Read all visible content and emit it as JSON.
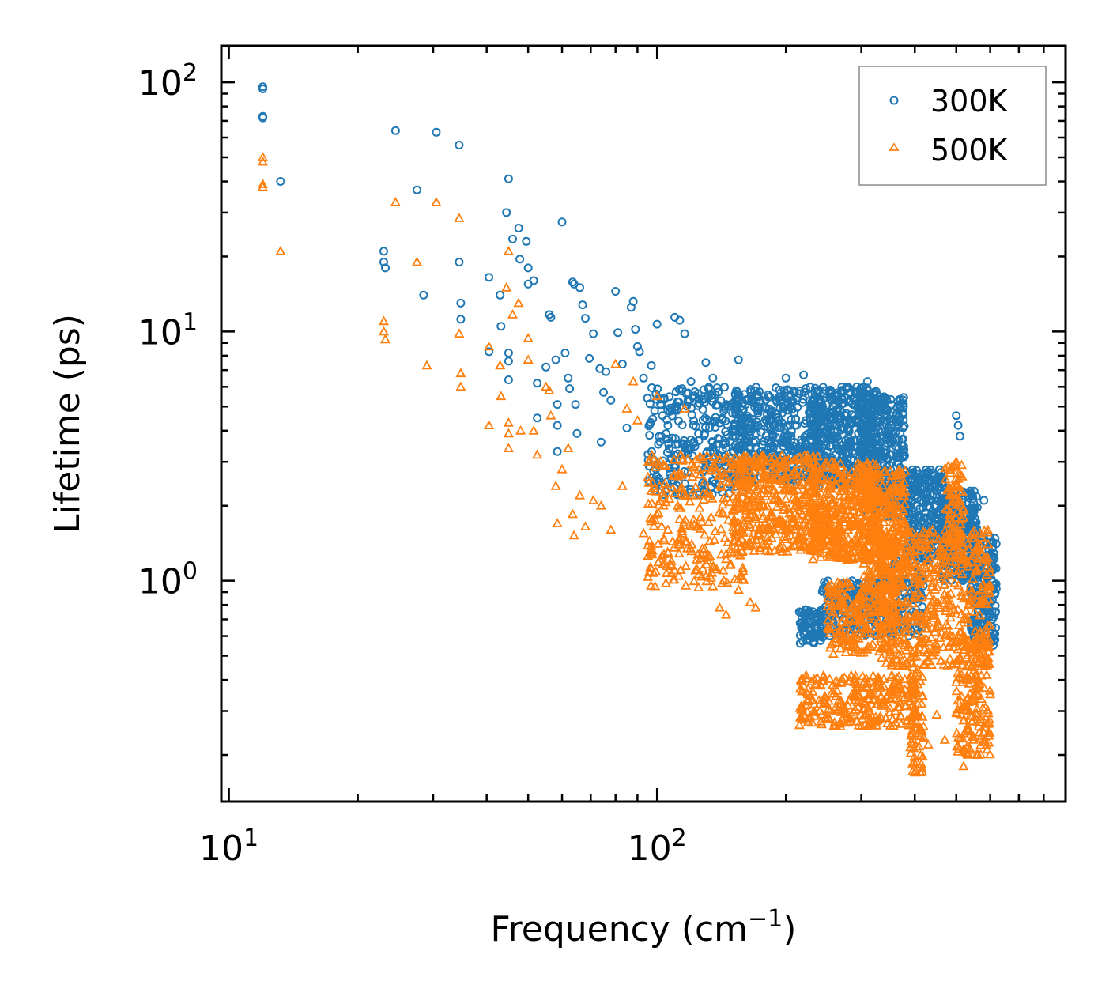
{
  "chart_data": {
    "type": "scatter",
    "title": "",
    "xlabel": "Frequency (cm",
    "xlabel_sup": "−1",
    "xlabel_suffix": ")",
    "ylabel": "Lifetime (ps)",
    "xscale": "log",
    "yscale": "log",
    "xlim": [
      9.6,
      900
    ],
    "ylim": [
      0.13,
      140
    ],
    "x_ticks": [
      {
        "value": 10,
        "base": "10",
        "exp": "1"
      },
      {
        "value": 100,
        "base": "10",
        "exp": "2"
      }
    ],
    "y_ticks": [
      {
        "value": 1,
        "base": "10",
        "exp": "0"
      },
      {
        "value": 10,
        "base": "10",
        "exp": "1"
      },
      {
        "value": 100,
        "base": "10",
        "exp": "2"
      }
    ],
    "legend_position": "top-right",
    "series": [
      {
        "name": "300K",
        "marker": "circle",
        "color": "#1f77b4",
        "points": [
          [
            12.0,
            96
          ],
          [
            12.0,
            94
          ],
          [
            12.0,
            73
          ],
          [
            12.0,
            72
          ],
          [
            13.2,
            40
          ],
          [
            24.5,
            64
          ],
          [
            23.0,
            21
          ],
          [
            23.0,
            19
          ],
          [
            23.2,
            18
          ],
          [
            27.5,
            37
          ],
          [
            28.5,
            14
          ],
          [
            30.5,
            63
          ],
          [
            34.5,
            56
          ],
          [
            34.5,
            19
          ],
          [
            34.8,
            13
          ],
          [
            34.8,
            11.2
          ],
          [
            40.5,
            16.5
          ],
          [
            40.5,
            8.3
          ],
          [
            43.0,
            14
          ],
          [
            43.2,
            10.5
          ],
          [
            44.5,
            30
          ],
          [
            45.0,
            41
          ],
          [
            45.0,
            8.2
          ],
          [
            45.0,
            7.6
          ],
          [
            45.0,
            6.4
          ],
          [
            46.0,
            23.5
          ],
          [
            47.5,
            26
          ],
          [
            47.8,
            19.5
          ],
          [
            49.5,
            23
          ],
          [
            50.0,
            18
          ],
          [
            50.0,
            15.5
          ],
          [
            51.5,
            16
          ],
          [
            52.5,
            6.2
          ],
          [
            52.5,
            4.5
          ],
          [
            55.0,
            7.2
          ],
          [
            56.0,
            11.7
          ],
          [
            56.5,
            11.4
          ],
          [
            58.0,
            7.7
          ],
          [
            58.5,
            5.1
          ],
          [
            58.5,
            4.2
          ],
          [
            58.5,
            3.3
          ],
          [
            60.0,
            27.5
          ],
          [
            61.0,
            8.2
          ],
          [
            62.0,
            6.5
          ],
          [
            62.5,
            5.9
          ],
          [
            63.5,
            15.8
          ],
          [
            64.0,
            15.5
          ],
          [
            64.5,
            5.1
          ],
          [
            65.0,
            3.9
          ],
          [
            66.0,
            15
          ],
          [
            67.0,
            12.8
          ],
          [
            68.0,
            11.3
          ],
          [
            69.5,
            7.8
          ],
          [
            71.0,
            9.8
          ],
          [
            73.5,
            7.1
          ],
          [
            74.0,
            3.6
          ],
          [
            75.0,
            5.7
          ],
          [
            76.0,
            6.9
          ],
          [
            78.0,
            5.3
          ],
          [
            80.0,
            14.5
          ],
          [
            81.0,
            9.9
          ],
          [
            83.0,
            7.4
          ],
          [
            85.0,
            4.1
          ],
          [
            87.0,
            12.5
          ],
          [
            88.0,
            13.2
          ],
          [
            89.0,
            10.2
          ],
          [
            90.0,
            8.7
          ],
          [
            91.0,
            8.3
          ],
          [
            93.0,
            6.5
          ],
          [
            95.0,
            5.4
          ],
          [
            97.0,
            7.3
          ],
          [
            100.0,
            10.7
          ],
          [
            103.0,
            4.6
          ],
          [
            106.0,
            4.2
          ],
          [
            108.0,
            2.6
          ],
          [
            110.0,
            11.4
          ],
          [
            113.0,
            11.1
          ],
          [
            116.0,
            9.8
          ],
          [
            120.0,
            6.3
          ],
          [
            125.0,
            3.9
          ],
          [
            130.0,
            7.5
          ],
          [
            135.0,
            6.5
          ],
          [
            140.0,
            3.7
          ],
          [
            145.0,
            5.1
          ],
          [
            150.0,
            4.7
          ],
          [
            155.0,
            7.7
          ],
          [
            160.0,
            5.6
          ],
          [
            170.0,
            3.4
          ],
          [
            180.0,
            4.9
          ],
          [
            190.0,
            5.3
          ],
          [
            200.0,
            6.5
          ],
          [
            210.0,
            4.2
          ],
          [
            220.0,
            6.7
          ],
          [
            215.0,
            0.75
          ],
          [
            225.0,
            0.68
          ],
          [
            230.0,
            0.59
          ],
          [
            240.0,
            4.3
          ],
          [
            250.0,
            0.72
          ],
          [
            260.0,
            5.6
          ],
          [
            270.0,
            0.81
          ],
          [
            280.0,
            4.1
          ],
          [
            290.0,
            0.64
          ],
          [
            300.0,
            5.9
          ],
          [
            310.0,
            6.3
          ],
          [
            320.0,
            4.8
          ],
          [
            330.0,
            0.9
          ],
          [
            340.0,
            5.4
          ],
          [
            350.0,
            3.7
          ],
          [
            370.0,
            3.1
          ],
          [
            390.0,
            2.3
          ],
          [
            400.0,
            0.85
          ],
          [
            420.0,
            2.6
          ],
          [
            440.0,
            2.2
          ],
          [
            460.0,
            2.1
          ],
          [
            480.0,
            2.0
          ],
          [
            500.0,
            4.6
          ],
          [
            505.0,
            4.2
          ],
          [
            510.0,
            3.8
          ],
          [
            530.0,
            2.2
          ],
          [
            560.0,
            1.4
          ],
          [
            580.0,
            2.1
          ],
          [
            600.0,
            0.82
          ],
          [
            610.0,
            0.55
          ]
        ],
        "clusters": [
          {
            "x": [
              95,
              160
            ],
            "y": [
              2.2,
              6.0
            ],
            "count": 260
          },
          {
            "x": [
              150,
              240
            ],
            "y": [
              2.5,
              6.0
            ],
            "count": 420
          },
          {
            "x": [
              230,
              330
            ],
            "y": [
              2.4,
              6.0
            ],
            "count": 460
          },
          {
            "x": [
              300,
              380
            ],
            "y": [
              1.8,
              5.5
            ],
            "count": 300
          },
          {
            "x": [
              380,
              470
            ],
            "y": [
              1.2,
              2.8
            ],
            "count": 260
          },
          {
            "x": [
              460,
              560
            ],
            "y": [
              1.0,
              2.3
            ],
            "count": 260
          },
          {
            "x": [
              540,
              620
            ],
            "y": [
              0.55,
              1.5
            ],
            "count": 200
          },
          {
            "x": [
              215,
              245
            ],
            "y": [
              0.56,
              0.77
            ],
            "count": 70
          },
          {
            "x": [
              240,
              330
            ],
            "y": [
              0.6,
              1.0
            ],
            "count": 180
          },
          {
            "x": [
              330,
              420
            ],
            "y": [
              0.6,
              1.2
            ],
            "count": 140
          }
        ]
      },
      {
        "name": "500K",
        "marker": "triangle",
        "color": "#ff7f0e",
        "points": [
          [
            12.0,
            50
          ],
          [
            12.0,
            48
          ],
          [
            12.0,
            39
          ],
          [
            12.0,
            38
          ],
          [
            13.2,
            21
          ],
          [
            23.0,
            11
          ],
          [
            23.0,
            10
          ],
          [
            23.2,
            9.3
          ],
          [
            24.5,
            33
          ],
          [
            27.5,
            19
          ],
          [
            29.0,
            7.3
          ],
          [
            30.5,
            33
          ],
          [
            34.5,
            28.5
          ],
          [
            34.5,
            9.8
          ],
          [
            34.8,
            6.8
          ],
          [
            34.8,
            6.0
          ],
          [
            40.5,
            8.7
          ],
          [
            40.5,
            4.2
          ],
          [
            43.0,
            7.3
          ],
          [
            43.2,
            5.5
          ],
          [
            44.5,
            15
          ],
          [
            45.0,
            21
          ],
          [
            45.0,
            4.3
          ],
          [
            45.0,
            3.9
          ],
          [
            45.0,
            3.4
          ],
          [
            46.0,
            11.7
          ],
          [
            47.5,
            13
          ],
          [
            48.0,
            4.0
          ],
          [
            50.0,
            9.4
          ],
          [
            50.0,
            7.7
          ],
          [
            51.5,
            4.0
          ],
          [
            52.5,
            3.2
          ],
          [
            55.0,
            6.0
          ],
          [
            56.0,
            5.8
          ],
          [
            56.5,
            4.6
          ],
          [
            58.0,
            2.4
          ],
          [
            58.5,
            1.7
          ],
          [
            60.0,
            2.8
          ],
          [
            62.0,
            3.4
          ],
          [
            63.5,
            1.85
          ],
          [
            64.0,
            1.52
          ],
          [
            66.0,
            2.2
          ],
          [
            68.0,
            1.65
          ],
          [
            71.0,
            2.1
          ],
          [
            74.0,
            2.0
          ],
          [
            78.0,
            1.6
          ],
          [
            80.0,
            7.4
          ],
          [
            83.0,
            2.4
          ],
          [
            85.0,
            4.9
          ],
          [
            88.0,
            6.3
          ],
          [
            90.0,
            4.4
          ],
          [
            93.0,
            1.55
          ],
          [
            97.0,
            1.3
          ],
          [
            100.0,
            5.5
          ],
          [
            106.0,
            1.6
          ],
          [
            110.0,
            1.1
          ],
          [
            116.0,
            4.9
          ],
          [
            125.0,
            0.94
          ],
          [
            135.0,
            0.95
          ],
          [
            140.0,
            0.78
          ],
          [
            145.0,
            0.73
          ],
          [
            155.0,
            0.92
          ],
          [
            165.0,
            0.82
          ],
          [
            170.0,
            0.78
          ],
          [
            200.0,
            2.3
          ],
          [
            225.0,
            0.35
          ],
          [
            240.0,
            0.3
          ],
          [
            260.0,
            0.27
          ],
          [
            300.0,
            0.26
          ],
          [
            330.0,
            0.28
          ],
          [
            360.0,
            0.3
          ],
          [
            400.0,
            0.17
          ],
          [
            430.0,
            0.22
          ],
          [
            450.0,
            0.29
          ],
          [
            470.0,
            0.23
          ],
          [
            500.0,
            3.0
          ],
          [
            520.0,
            0.18
          ],
          [
            560.0,
            0.2
          ],
          [
            600.0,
            0.35
          ]
        ],
        "clusters": [
          {
            "x": [
              95,
              160
            ],
            "y": [
              0.95,
              3.2
            ],
            "count": 260
          },
          {
            "x": [
              150,
              240
            ],
            "y": [
              1.3,
              3.2
            ],
            "count": 420
          },
          {
            "x": [
              230,
              330
            ],
            "y": [
              1.2,
              3.0
            ],
            "count": 420
          },
          {
            "x": [
              300,
              380
            ],
            "y": [
              0.9,
              2.8
            ],
            "count": 300
          },
          {
            "x": [
              330,
              600
            ],
            "y": [
              0.45,
              1.6
            ],
            "count": 520
          },
          {
            "x": [
              215,
              400
            ],
            "y": [
              0.26,
              0.42
            ],
            "count": 260
          },
          {
            "x": [
              250,
              360
            ],
            "y": [
              0.5,
              1.0
            ],
            "count": 220
          },
          {
            "x": [
              390,
              420
            ],
            "y": [
              0.17,
              0.5
            ],
            "count": 80
          },
          {
            "x": [
              500,
              600
            ],
            "y": [
              0.2,
              0.6
            ],
            "count": 180
          },
          {
            "x": [
              470,
              520
            ],
            "y": [
              1.2,
              3.0
            ],
            "count": 80
          }
        ]
      }
    ]
  }
}
